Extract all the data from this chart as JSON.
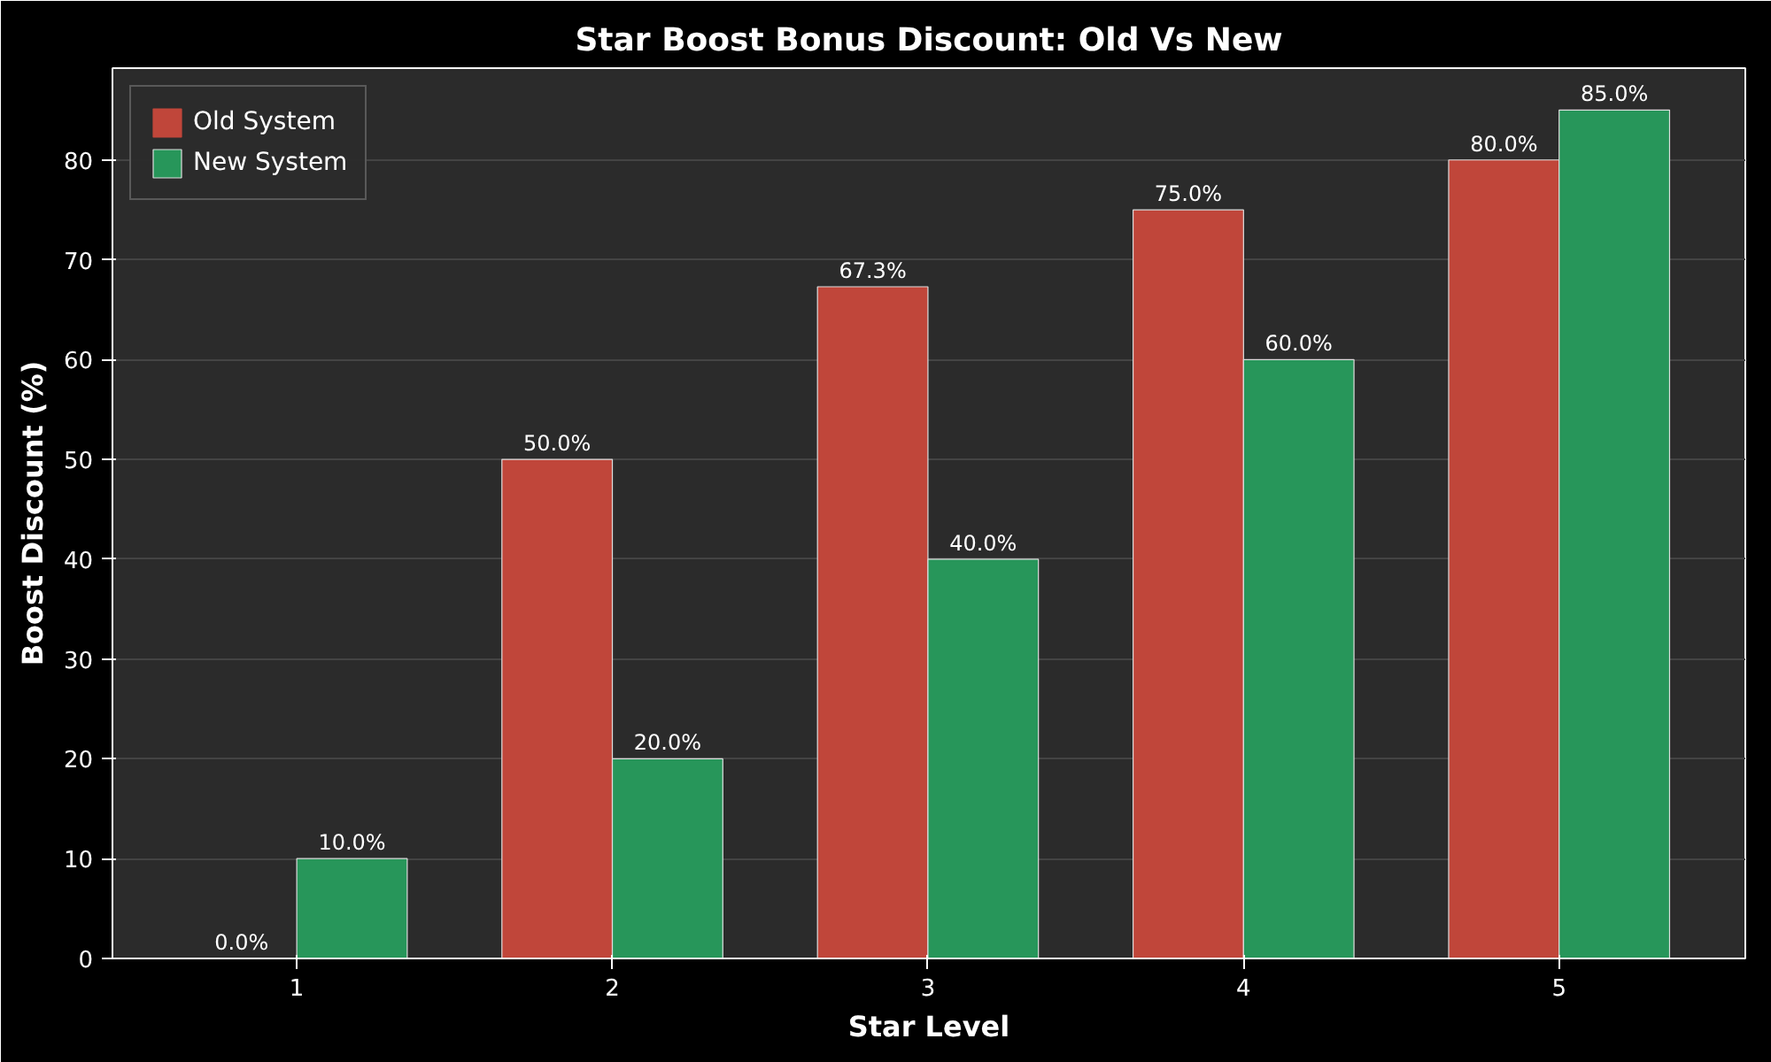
{
  "chart_data": {
    "type": "bar",
    "title": "Star Boost Bonus Discount: Old Vs New",
    "xlabel": "Star Level",
    "ylabel": "Boost Discount (%)",
    "categories": [
      "1",
      "2",
      "3",
      "4",
      "5"
    ],
    "series": [
      {
        "name": "Old System",
        "color": "#c0463a",
        "values": [
          0,
          50,
          67.3,
          75,
          80
        ],
        "value_labels": [
          "0.0%",
          "50.0%",
          "67.3%",
          "75.0%",
          "80.0%"
        ]
      },
      {
        "name": "New System",
        "color": "#27965a",
        "values": [
          10,
          20,
          40,
          60,
          85
        ],
        "value_labels": [
          "10.0%",
          "20.0%",
          "40.0%",
          "60.0%",
          "85.0%"
        ]
      }
    ],
    "ylim": [
      0,
      89.2
    ],
    "yticks": [
      0,
      10,
      20,
      30,
      40,
      50,
      60,
      70,
      80
    ],
    "grid": "y",
    "legend": "top left"
  }
}
